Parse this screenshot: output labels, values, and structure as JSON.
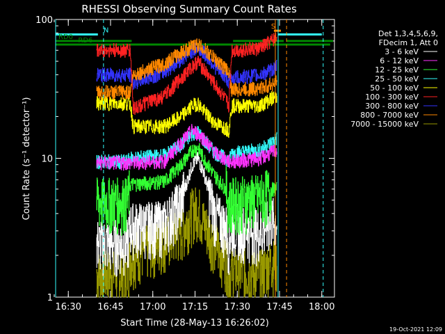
{
  "chart_data": {
    "type": "line",
    "title": "RHESSI Observing Summary Count Rates",
    "xlabel": "Start Time (28-May-13 16:26:02)",
    "ylabel": "Count Rate (s⁻¹ detector⁻¹)",
    "yscale": "log",
    "ylim": [
      1,
      100
    ],
    "y_ticks": [
      "1",
      "10",
      "100"
    ],
    "xlim_minutes": [
      -0.5,
      98.5
    ],
    "x_ticks": [
      {
        "label": "16:30",
        "minute": 4
      },
      {
        "label": "16:45",
        "minute": 19
      },
      {
        "label": "17:00",
        "minute": 34
      },
      {
        "label": "17:15",
        "minute": 49
      },
      {
        "label": "17:30",
        "minute": 64
      },
      {
        "label": "17:45",
        "minute": 79
      },
      {
        "label": "18:00",
        "minute": 94
      }
    ],
    "legend": {
      "header": [
        "Det 1,3,4,5,6,9,",
        "FDecim 1, Att 0"
      ],
      "placement": "right"
    },
    "data_start_minute": 14,
    "data_end_minute": 78,
    "series": [
      {
        "name": "3 - 6 keV",
        "color": "#ffffff",
        "x": [
          14,
          25,
          26,
          38,
          44,
          48,
          50,
          52,
          56,
          60,
          61,
          62,
          72,
          76,
          78
        ],
        "y": [
          2.5,
          2.5,
          3.3,
          3.4,
          5.0,
          9.0,
          10,
          8.0,
          4.0,
          3.2,
          2.5,
          3.3,
          3.0,
          3.6,
          3.6
        ]
      },
      {
        "name": "6 - 12 keV",
        "color": "#ff33ff",
        "x": [
          14,
          26,
          38,
          44,
          48,
          52,
          56,
          61,
          62,
          72,
          76,
          78
        ],
        "y": [
          9.3,
          9.3,
          9.5,
          13,
          16,
          14,
          11,
          9.5,
          9.5,
          10,
          11,
          11.5
        ]
      },
      {
        "name": "12 - 25 keV",
        "color": "#33ff33",
        "x": [
          14,
          25,
          26,
          38,
          44,
          48,
          50,
          52,
          56,
          60,
          61,
          62,
          72,
          76,
          78
        ],
        "y": [
          5.0,
          5.0,
          6.5,
          6.8,
          9.0,
          11.5,
          12,
          10,
          7.5,
          6.0,
          4.8,
          5.0,
          5.3,
          6.0,
          6.0
        ]
      },
      {
        "name": "25 - 50 keV",
        "color": "#33ffff",
        "x": [
          14,
          25,
          26,
          38,
          44,
          48,
          50,
          52,
          56,
          60,
          61,
          62,
          72,
          76,
          78
        ],
        "y": [
          9.5,
          9.5,
          10,
          10.5,
          12.5,
          15,
          15.5,
          13.5,
          11,
          10,
          9.5,
          11,
          11.5,
          13,
          14
        ]
      },
      {
        "name": "50 - 100 keV",
        "color": "#ffff00",
        "x": [
          14,
          26,
          27,
          38,
          44,
          48,
          50,
          52,
          56,
          60,
          61,
          62,
          72,
          76,
          78
        ],
        "y": [
          25,
          25,
          17,
          17,
          20,
          24,
          25,
          22,
          18,
          16.5,
          16,
          24,
          24,
          27,
          28
        ]
      },
      {
        "name": "100 - 300 keV",
        "color": "#ff2222",
        "x": [
          14,
          26,
          27,
          38,
          44,
          48,
          50,
          52,
          56,
          60,
          61,
          62,
          72,
          76,
          78
        ],
        "y": [
          60,
          60,
          23,
          28,
          38,
          46,
          50,
          44,
          34,
          26,
          24,
          60,
          62,
          70,
          75
        ]
      },
      {
        "name": "300 - 800 keV",
        "color": "#3333ff",
        "x": [
          14,
          26,
          27,
          38,
          44,
          48,
          50,
          52,
          56,
          60,
          61,
          62,
          72,
          76,
          78
        ],
        "y": [
          40,
          40,
          35,
          42,
          52,
          60,
          62,
          58,
          46,
          38,
          36,
          38,
          40,
          43,
          46
        ]
      },
      {
        "name": "800 - 7000 keV",
        "color": "#ff8800",
        "x": [
          14,
          26,
          27,
          38,
          44,
          48,
          50,
          52,
          56,
          60,
          61,
          62,
          72,
          76,
          78
        ],
        "y": [
          30,
          30,
          40,
          48,
          58,
          64,
          66,
          62,
          52,
          44,
          42,
          31,
          32,
          34,
          36
        ]
      },
      {
        "name": "7000 - 15000 keV",
        "color": "#999900",
        "x": [
          14,
          25,
          26,
          38,
          44,
          48,
          50,
          52,
          56,
          60,
          61,
          62,
          72,
          76,
          78
        ],
        "y": [
          1.5,
          1.5,
          2.0,
          2.6,
          3.0,
          4.2,
          4.5,
          3.5,
          2.5,
          1.9,
          1.5,
          1.6,
          1.5,
          1.8,
          1.8
        ]
      }
    ],
    "status_bars": [
      {
        "label": "N",
        "color": "#33ffff",
        "y": 78,
        "segments": [
          [
            -0.5,
            14.5
          ],
          [
            78.5,
            94
          ]
        ],
        "label_minute": 16
      },
      {
        "label": "S",
        "color": "#ff8800",
        "y": 83,
        "segments": [
          [
            77,
            79.5
          ]
        ],
        "label_minute": 75.5
      },
      {
        "label": "RD0",
        "color": "#008800",
        "y": 70,
        "segments": [
          [
            -0.5,
            26.5
          ],
          [
            62.5,
            80.5
          ],
          [
            81.5,
            98
          ]
        ],
        "label_minute": 0
      },
      {
        "label": "RD6",
        "color": "#008800",
        "y": 66,
        "segments": [
          [
            -0.5,
            97
          ]
        ],
        "label_minute": 7
      }
    ],
    "vertical_markers": [
      {
        "color": "#33ffff",
        "style": "solid",
        "minute": -0.5
      },
      {
        "color": "#33ffff",
        "style": "dashed",
        "minute": 16.5
      },
      {
        "color": "#33ffff",
        "style": "solid",
        "minute": 78.5
      },
      {
        "color": "#33ffff",
        "style": "dashed",
        "minute": 94.5
      },
      {
        "color": "#ff8800",
        "style": "solid",
        "minute": 77.5
      },
      {
        "color": "#ff8800",
        "style": "dashed",
        "minute": 81.5
      }
    ]
  },
  "footer_timestamp": "19-Oct-2021 12:09"
}
